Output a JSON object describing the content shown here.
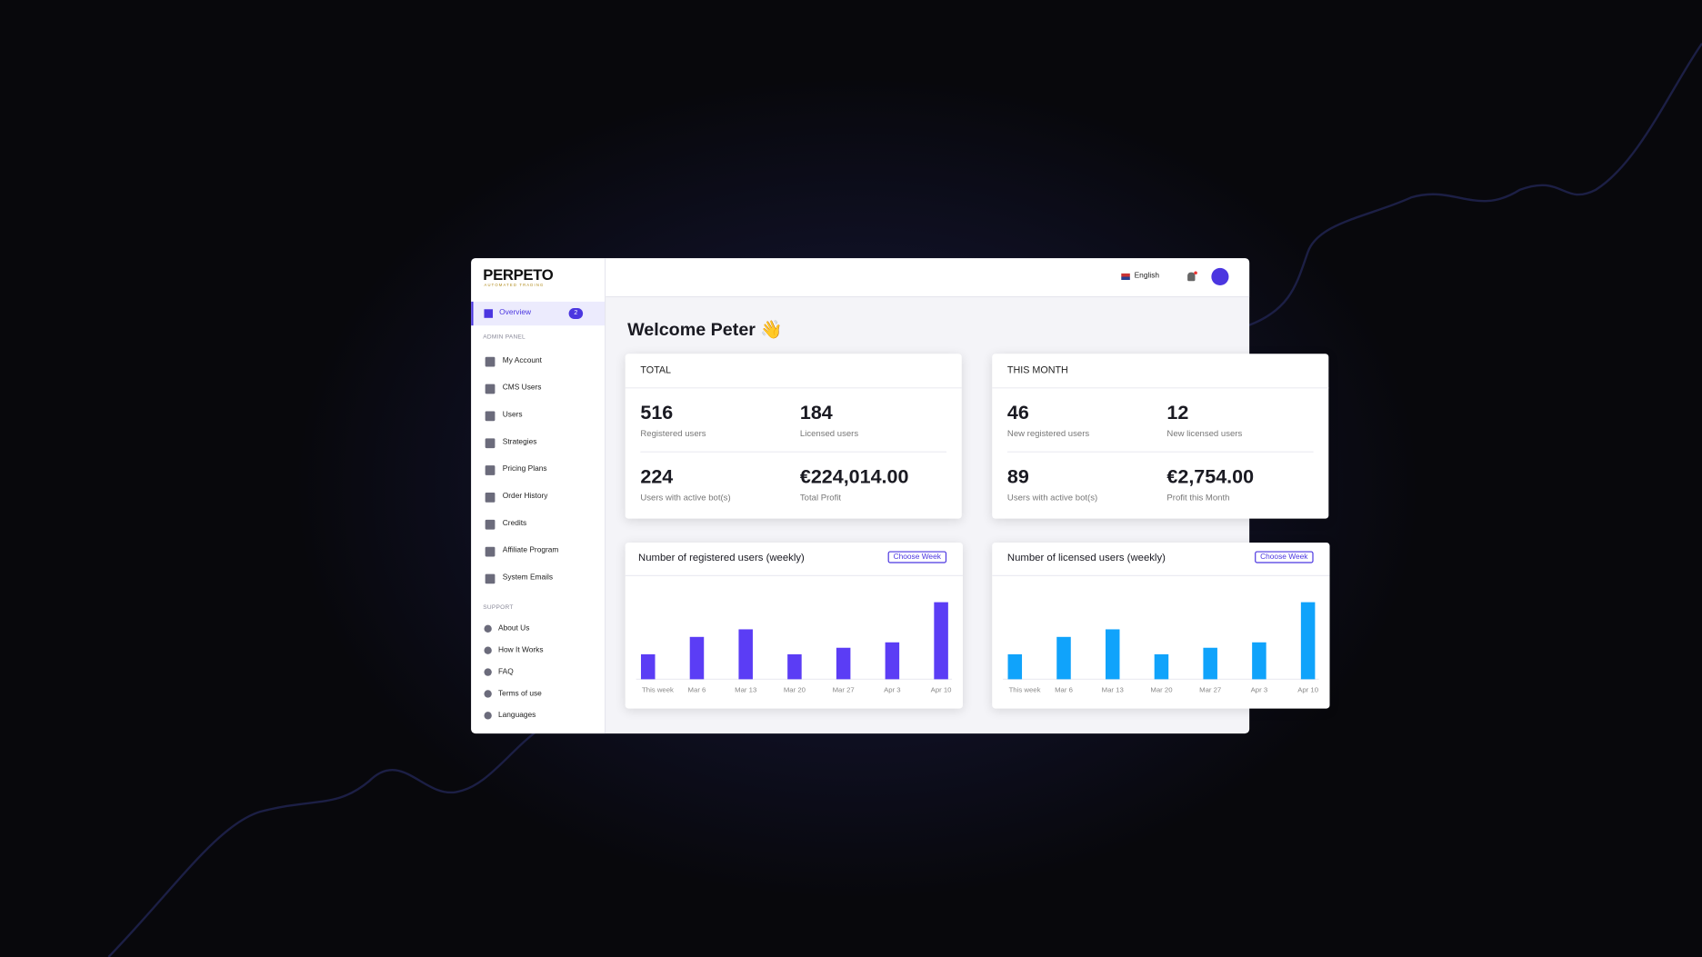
{
  "brand": {
    "name": "PERPETO",
    "tagline": "AUTOMATED TRADING"
  },
  "header": {
    "language": "English"
  },
  "sidebar": {
    "active": {
      "label": "Overview",
      "badge": 2
    },
    "sections": [
      {
        "title": "ADMIN PANEL",
        "items": [
          "My Account",
          "CMS Users",
          "Users",
          "Strategies",
          "Pricing Plans",
          "Order History",
          "Credits",
          "Affiliate Program",
          "System Emails"
        ]
      },
      {
        "title": "SUPPORT",
        "items": [
          "About Us",
          "How It Works",
          "FAQ",
          "Terms of use",
          "Languages"
        ]
      }
    ]
  },
  "welcome": "Welcome Peter 👋",
  "cards": [
    {
      "title": "TOTAL",
      "stats": [
        {
          "value": 516,
          "label": "Registered users"
        },
        {
          "value": 184,
          "label": "Licensed users"
        },
        {
          "value": 224,
          "label": "Users with active bot(s)"
        },
        {
          "value": "€224,014.00",
          "label": "Total Profit"
        }
      ]
    },
    {
      "title": "THIS MONTH",
      "stats": [
        {
          "value": 46,
          "label": "New registered users"
        },
        {
          "value": 12,
          "label": "New licensed users"
        },
        {
          "value": 89,
          "label": "Users with active bot(s)"
        },
        {
          "value": "€2,754.00",
          "label": "Profit this Month"
        }
      ]
    }
  ],
  "chart_data": [
    {
      "type": "bar",
      "title": "Number of registered users (weekly)",
      "button": "Choose Week",
      "color": "#5b3df5",
      "categories": [
        "This week",
        "Mar 6",
        "Mar 13",
        "Mar 20",
        "Mar 27",
        "Apr 3",
        "Apr 10"
      ],
      "values": [
        23,
        39,
        46,
        23,
        29,
        34,
        71
      ]
    },
    {
      "type": "bar",
      "title": "Number of licensed users (weekly)",
      "button": "Choose Week",
      "color": "#10a3fb",
      "categories": [
        "This week",
        "Mar 6",
        "Mar 13",
        "Mar 20",
        "Mar 27",
        "Apr 3",
        "Apr 10"
      ],
      "values": [
        23,
        39,
        46,
        23,
        29,
        34,
        71
      ]
    }
  ]
}
